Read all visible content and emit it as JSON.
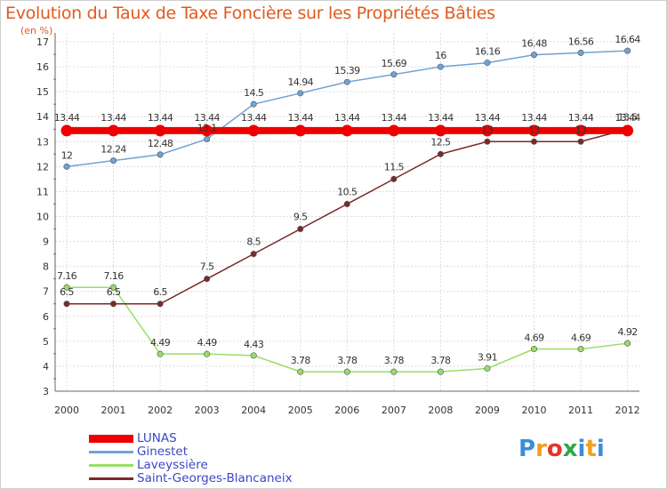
{
  "chart_data": {
    "type": "line",
    "title": "Evolution du Taux de Taxe Foncière sur les Propriétés Bâties",
    "unit_label": "(en %)",
    "x": [
      "2000",
      "2001",
      "2002",
      "2003",
      "2004",
      "2005",
      "2006",
      "2007",
      "2008",
      "2009",
      "2010",
      "2011",
      "2012"
    ],
    "ylim": [
      3,
      17
    ],
    "yticks": [
      "3",
      "4",
      "5",
      "6",
      "7",
      "8",
      "9",
      "10",
      "11",
      "12",
      "13",
      "14",
      "15",
      "16",
      "17"
    ],
    "series": [
      {
        "name": "LUNAS",
        "color": "#ee0000",
        "values": [
          13.44,
          13.44,
          13.44,
          13.44,
          13.44,
          13.44,
          13.44,
          13.44,
          13.44,
          13.44,
          13.44,
          13.44,
          13.44
        ],
        "labels": [
          "13.44",
          "13.44",
          "13.44",
          "13.44",
          "13.44",
          "13.44",
          "13.44",
          "13.44",
          "13.44",
          "13.44",
          "13.44",
          "13.44",
          "13.44"
        ]
      },
      {
        "name": "Ginestet",
        "color": "#6fa3d5",
        "values": [
          12,
          12.24,
          12.48,
          13.1,
          14.5,
          14.94,
          15.39,
          15.69,
          16,
          16.16,
          16.48,
          16.56,
          16.64
        ],
        "labels": [
          "12",
          "12.24",
          "12.48",
          "13.1",
          "14.5",
          "14.94",
          "15.39",
          "15.69",
          "16",
          "16.16",
          "16.48",
          "16.56",
          "16.64"
        ]
      },
      {
        "name": "Laveyssière",
        "color": "#99dd66",
        "values": [
          7.16,
          7.16,
          4.49,
          4.49,
          4.43,
          3.78,
          3.78,
          3.78,
          3.78,
          3.91,
          4.69,
          4.69,
          4.92
        ],
        "labels": [
          "7.16",
          "7.16",
          "4.49",
          "4.49",
          "4.43",
          "3.78",
          "3.78",
          "3.78",
          "3.78",
          "3.91",
          "4.69",
          "4.69",
          "4.92"
        ]
      },
      {
        "name": "Saint-Georges-Blancaneix",
        "color": "#7a2a2a",
        "values": [
          6.5,
          6.5,
          6.5,
          7.5,
          8.5,
          9.5,
          10.5,
          11.5,
          12.5,
          13,
          13,
          13,
          13.5
        ],
        "labels": [
          "6.5",
          "6.5",
          "6.5",
          "7.5",
          "8.5",
          "9.5",
          "10.5",
          "11.5",
          "12.5",
          "13",
          "13",
          "13",
          "13.5"
        ]
      }
    ]
  },
  "logo": {
    "letters": [
      "P",
      "r",
      "o",
      "x",
      "i",
      "t",
      "i"
    ],
    "colors": [
      "#3b8ed8",
      "#f0a020",
      "#e6332a",
      "#2aa84a",
      "#3b8ed8",
      "#f0a020",
      "#3b8ed8"
    ]
  }
}
